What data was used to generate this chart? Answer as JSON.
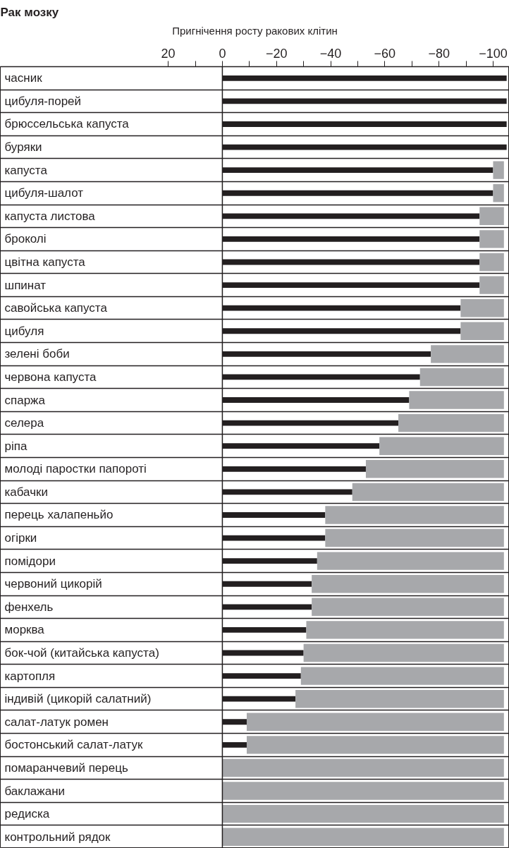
{
  "chart_data": {
    "type": "bar",
    "orientation": "horizontal",
    "stacked": true,
    "title": "Рак мозку",
    "xlabel": "Пригнічення росту ракових клітин",
    "categories": [
      "часник",
      "цибуля-порей",
      "брюссельська капуста",
      "буряки",
      "капуста",
      "цибуля-шалот",
      "капуста листова",
      "броколі",
      "цвітна капуста",
      "шпинат",
      "савойська капуста",
      "цибуля",
      "зелені боби",
      "червона капуста",
      "спаржа",
      "селера",
      "ріпа",
      "молоді паростки папороті",
      "кабачки",
      "перець халапеньйо",
      "огірки",
      "помідори",
      "червоний цикорій",
      "фенхель",
      "морква",
      "бок-чой (китайська капуста)",
      "картопля",
      "індивій (цикорій салатний)",
      "салат-латук ромен",
      "бостонський салат-латук",
      "помаранчевий перець",
      "баклажани",
      "редиска",
      "контрольний рядок"
    ],
    "series": [
      {
        "color": "#231f20",
        "values": [
          -105,
          -105,
          -105,
          -105,
          -100,
          -100,
          -95,
          -95,
          -95,
          -95,
          -88,
          -88,
          -77,
          -73,
          -69,
          -65,
          -58,
          -53,
          -48,
          -38,
          -38,
          -35,
          -33,
          -33,
          -31,
          -30,
          -29,
          -27,
          -9,
          -9,
          0,
          0,
          0,
          0
        ]
      },
      {
        "color": "#a7a8ab",
        "values": [
          null,
          null,
          null,
          null,
          -4,
          -4,
          -9,
          -9,
          -9,
          -9,
          -16,
          -16,
          -27,
          -31,
          -35,
          -39,
          -46,
          -51,
          -56,
          -66,
          -66,
          -69,
          -71,
          -71,
          -73,
          -74,
          -75,
          -77,
          -95,
          -95,
          -104,
          -104,
          -104,
          -104
        ]
      }
    ],
    "xlim": [
      82,
      -106
    ],
    "xticks": [
      20,
      {
        "value": 10,
        "label": null
      },
      0,
      {
        "value": -10,
        "label": null
      },
      {
        "value": -20,
        "label": "−20"
      },
      {
        "value": -30,
        "label": null
      },
      {
        "value": -40,
        "label": "−40"
      },
      {
        "value": -50,
        "label": null
      },
      {
        "value": -60,
        "label": "−60"
      },
      {
        "value": -70,
        "label": null
      },
      {
        "value": -80,
        "label": "−80"
      },
      {
        "value": -90,
        "label": null
      },
      {
        "value": -100,
        "label": "−100"
      }
    ],
    "ref_lines": [
      {
        "axis": "x",
        "value": 0,
        "color": "#231f20"
      }
    ],
    "grid": "y"
  }
}
